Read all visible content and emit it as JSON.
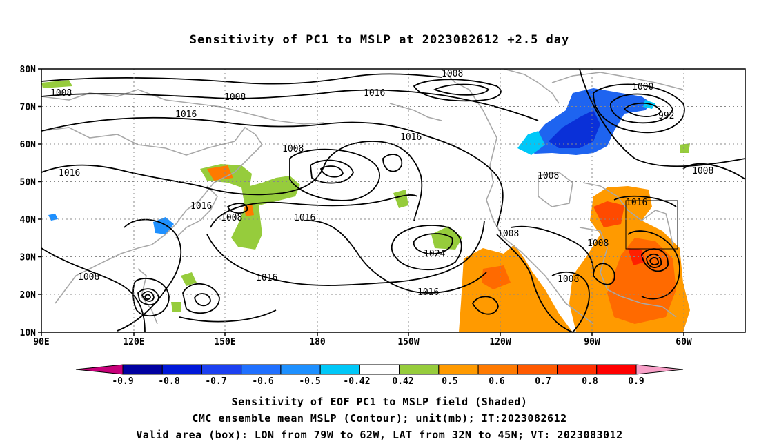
{
  "title": "Sensitivity of PC1 to MSLP at 2023082612 +2.5 day",
  "lat_labels": [
    "80N",
    "70N",
    "60N",
    "50N",
    "40N",
    "30N",
    "20N",
    "10N"
  ],
  "lon_labels": [
    "90E",
    "120E",
    "150E",
    "180",
    "150W",
    "120W",
    "90W",
    "60W"
  ],
  "colorbar": {
    "ticks": [
      "-0.9",
      "-0.8",
      "-0.7",
      "-0.6",
      "-0.5",
      "-0.42",
      "0.42",
      "0.5",
      "0.6",
      "0.7",
      "0.8",
      "0.9"
    ],
    "colors": [
      "#c8007a",
      "#0000a0",
      "#0018d8",
      "#1c40f0",
      "#2070ff",
      "#1e90ff",
      "#00c8f8",
      "#ffffff",
      "#96cc3c",
      "#ff9a00",
      "#ff7a00",
      "#ff5a00",
      "#ff3000",
      "#ff0000",
      "#f8a0c8"
    ]
  },
  "contour_labels": [
    "1008",
    "1008",
    "1008",
    "1016",
    "1016",
    "1008",
    "1000",
    "992",
    "1016",
    "1008",
    "1016",
    "1008",
    "1016",
    "1008",
    "1016",
    "1008",
    "1024",
    "1016",
    "1016",
    "1008",
    "1008",
    "1016",
    "1008"
  ],
  "captions": [
    "Sensitivity of EOF PC1 to MSLP field (Shaded)",
    "CMC ensemble mean MSLP (Contour); unit(mb); IT:2023082612",
    "Valid area (box): LON from 79W to 62W, LAT from 32N to 45N; VT: 2023083012"
  ]
}
